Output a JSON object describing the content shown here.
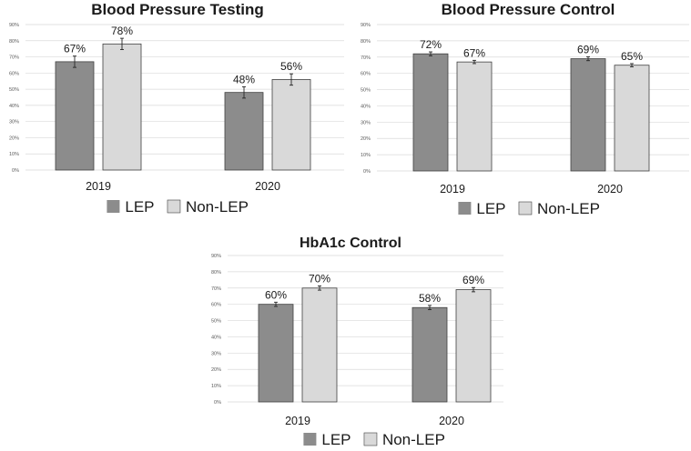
{
  "colors": {
    "lep": "#8c8c8c",
    "non_lep": "#d9d9d9",
    "bar_stroke": "#404040",
    "grid": "#d9d9d9",
    "text": "#1a1a1a",
    "tick_text": "#595959",
    "error_bar": "#262626"
  },
  "chart_data": [
    {
      "type": "bar",
      "title": "Blood Pressure Testing",
      "categories": [
        "2019",
        "2020"
      ],
      "series": [
        {
          "name": "LEP",
          "values": [
            67,
            48
          ],
          "labels": [
            "67%",
            "48%"
          ],
          "error": [
            3.5,
            3.5
          ]
        },
        {
          "name": "Non-LEP",
          "values": [
            78,
            56
          ],
          "labels": [
            "78%",
            "56%"
          ],
          "error": [
            3.5,
            3.5
          ]
        }
      ],
      "yticks": [
        0,
        10,
        20,
        30,
        40,
        50,
        60,
        70,
        80,
        90
      ],
      "ytick_labels": [
        "0%",
        "10%",
        "20%",
        "30%",
        "40%",
        "50%",
        "60%",
        "70%",
        "80%",
        "90%"
      ],
      "ylim": [
        0,
        90
      ],
      "xlabel": "",
      "ylabel": "",
      "grid": true,
      "legend": "bottom"
    },
    {
      "type": "bar",
      "title": "Blood Pressure Control",
      "categories": [
        "2019",
        "2020"
      ],
      "series": [
        {
          "name": "LEP",
          "values": [
            72,
            69
          ],
          "labels": [
            "72%",
            "69%"
          ],
          "error": [
            1.2,
            1.2
          ]
        },
        {
          "name": "Non-LEP",
          "values": [
            67,
            65
          ],
          "labels": [
            "67%",
            "65%"
          ],
          "error": [
            1.0,
            1.0
          ]
        }
      ],
      "yticks": [
        0,
        10,
        20,
        30,
        40,
        50,
        60,
        70,
        80,
        90
      ],
      "ytick_labels": [
        "0%",
        "10%",
        "20%",
        "30%",
        "40%",
        "50%",
        "60%",
        "70%",
        "80%",
        "90%"
      ],
      "ylim": [
        0,
        90
      ],
      "xlabel": "",
      "ylabel": "",
      "grid": true,
      "legend": "bottom"
    },
    {
      "type": "bar",
      "title": "HbA1c Control",
      "categories": [
        "2019",
        "2020"
      ],
      "series": [
        {
          "name": "LEP",
          "values": [
            60,
            58
          ],
          "labels": [
            "60%",
            "58%"
          ],
          "error": [
            1.3,
            1.3
          ]
        },
        {
          "name": "Non-LEP",
          "values": [
            70,
            69
          ],
          "labels": [
            "70%",
            "69%"
          ],
          "error": [
            1.3,
            1.3
          ]
        }
      ],
      "yticks": [
        0,
        10,
        20,
        30,
        40,
        50,
        60,
        70,
        80,
        90
      ],
      "ytick_labels": [
        "0%",
        "10%",
        "20%",
        "30%",
        "40%",
        "50%",
        "60%",
        "70%",
        "80%",
        "90%"
      ],
      "ylim": [
        0,
        90
      ],
      "xlabel": "",
      "ylabel": "",
      "grid": true,
      "legend": "bottom"
    }
  ]
}
